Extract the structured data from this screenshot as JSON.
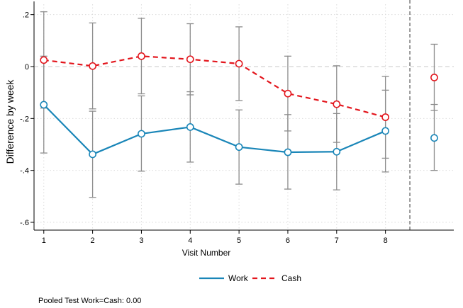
{
  "chart_data": {
    "type": "line",
    "xlabel": "Visit Number",
    "ylabel": "Difference by week",
    "x_ticks": [
      1,
      2,
      3,
      4,
      5,
      6,
      7,
      8
    ],
    "y_ticks": [
      {
        "value": 0.2,
        "label": ".2"
      },
      {
        "value": 0,
        "label": "0"
      },
      {
        "value": -0.2,
        "label": "-.2"
      },
      {
        "value": -0.4,
        "label": "-.4"
      },
      {
        "value": -0.6,
        "label": "-.6"
      }
    ],
    "xlim": [
      0.8,
      9.4
    ],
    "ylim": [
      -0.63,
      0.24
    ],
    "grid": true,
    "reference_line_y": 0,
    "separator_x": 8.5,
    "pooled_x": 9,
    "legend_position": "bottom",
    "series": [
      {
        "name": "Work",
        "color": "#1a86b8",
        "line_style": "solid",
        "values": [
          -0.147,
          -0.338,
          -0.259,
          -0.233,
          -0.31,
          -0.33,
          -0.328,
          -0.248
        ],
        "ci_low": [
          -0.333,
          -0.504,
          -0.403,
          -0.368,
          -0.453,
          -0.472,
          -0.475,
          -0.406
        ],
        "ci_high": [
          0.04,
          -0.172,
          -0.113,
          -0.097,
          -0.167,
          -0.185,
          -0.181,
          -0.091
        ],
        "pooled": {
          "value": -0.275,
          "ci_low": -0.4,
          "ci_high": -0.146
        }
      },
      {
        "name": "Cash",
        "color": "#e3161d",
        "line_style": "dashed",
        "values": [
          0.025,
          0.002,
          0.04,
          0.028,
          0.011,
          -0.104,
          -0.145,
          -0.195
        ],
        "ci_low": [
          -0.16,
          -0.163,
          -0.105,
          -0.109,
          -0.131,
          -0.248,
          -0.292,
          -0.353
        ],
        "ci_high": [
          0.211,
          0.168,
          0.186,
          0.165,
          0.153,
          0.04,
          0.003,
          -0.038
        ],
        "pooled": {
          "value": -0.042,
          "ci_low": -0.169,
          "ci_high": 0.086
        }
      }
    ],
    "note": "Pooled Test Work=Cash: 0.00"
  }
}
